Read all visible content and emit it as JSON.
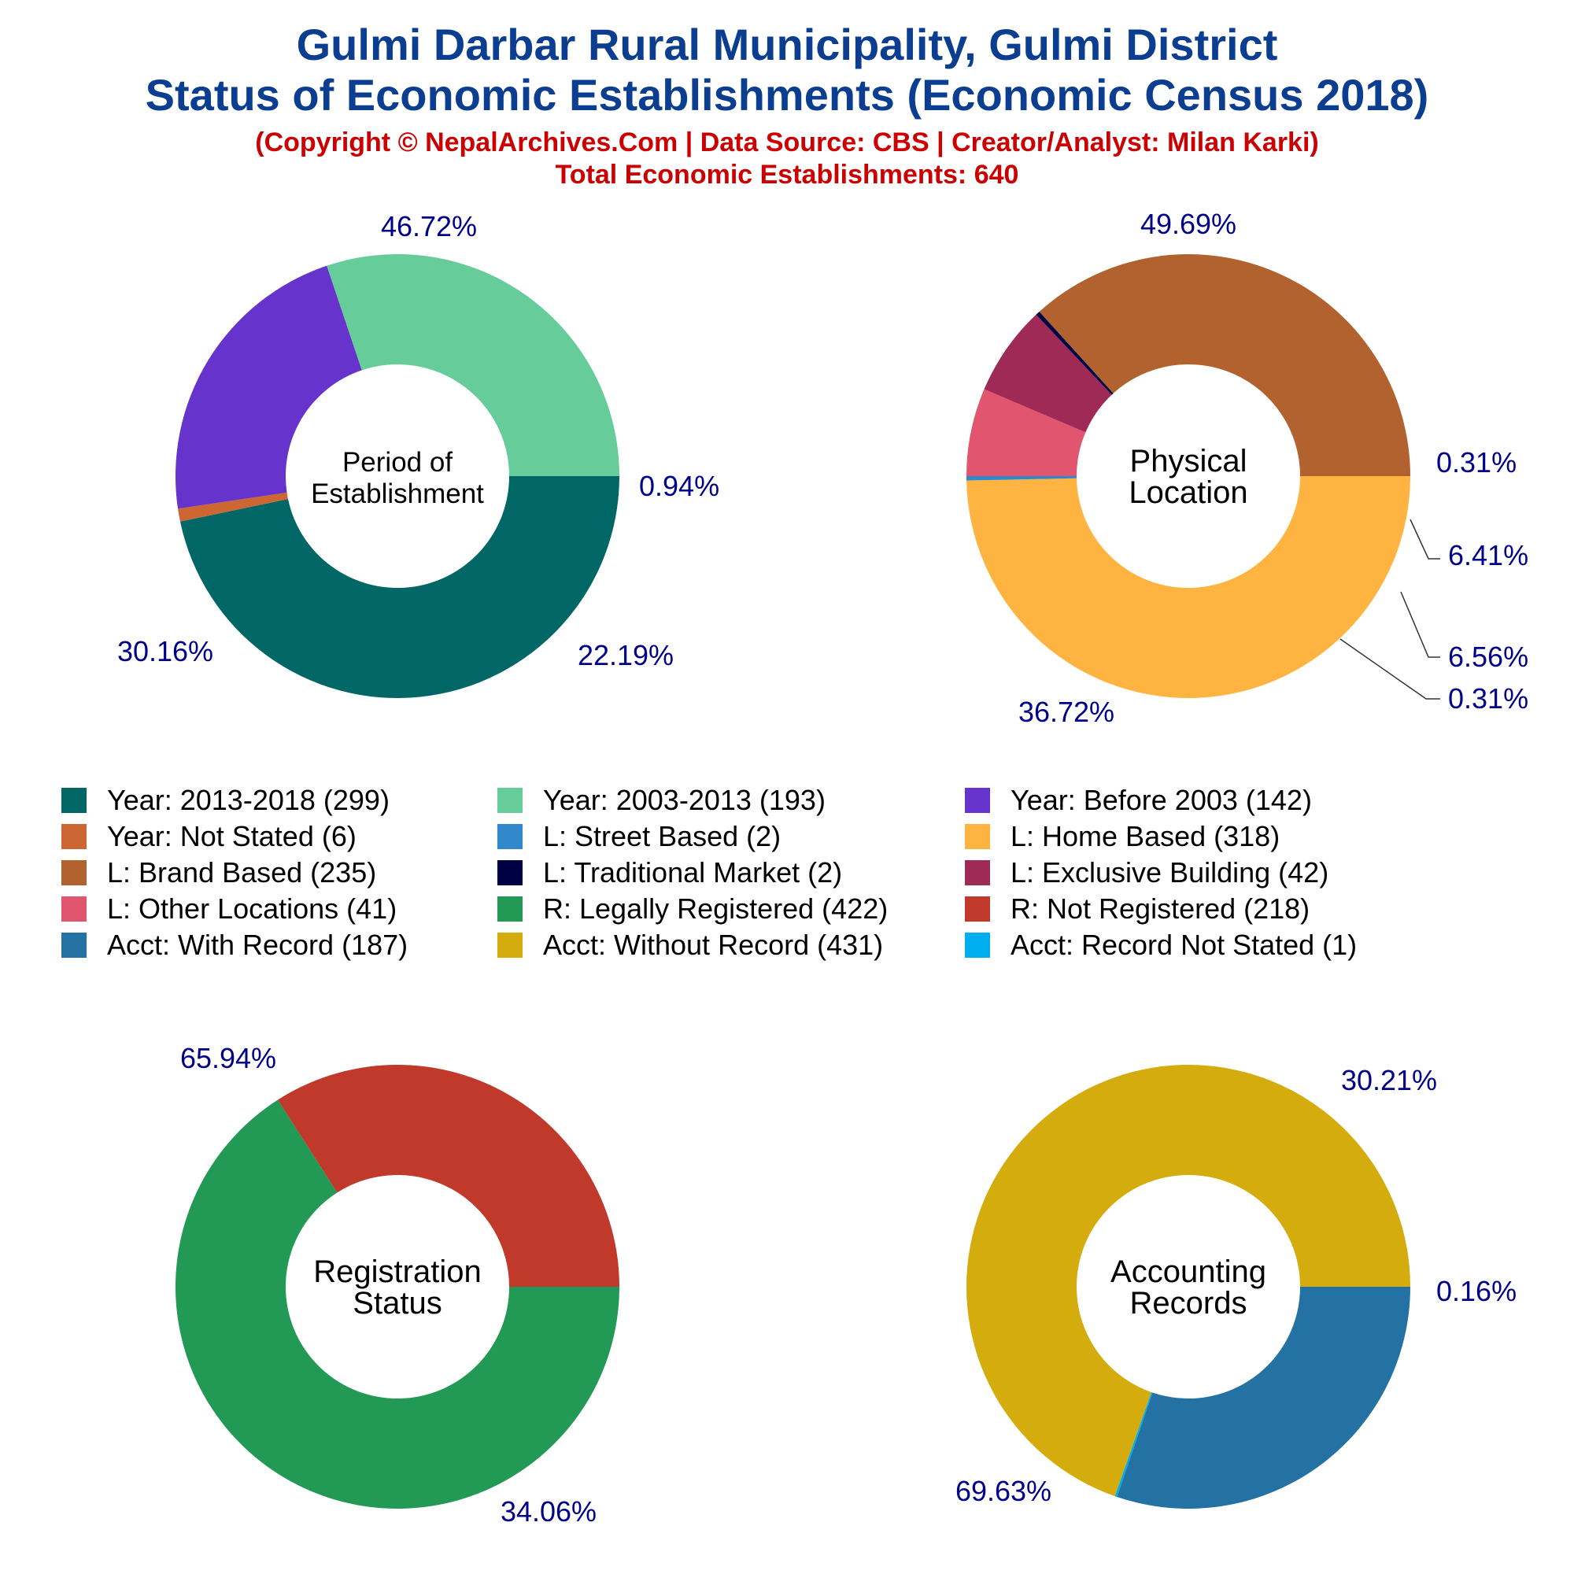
{
  "header": {
    "title_line1": "Gulmi Darbar Rural Municipality, Gulmi District",
    "title_line2": "Status of Economic Establishments (Economic Census 2018)",
    "copyright": "(Copyright © NepalArchives.Com | Data Source: CBS | Creator/Analyst: Milan Karki)",
    "total": "Total Economic Establishments: 640"
  },
  "colors": {
    "title": "#0b3d91",
    "subtitle": "#cc0000",
    "pct_label": "#00008b"
  },
  "legend": [
    {
      "label": "Year: 2013-2018 (299)",
      "color": "#006666"
    },
    {
      "label": "Year: 2003-2013 (193)",
      "color": "#66cc99"
    },
    {
      "label": "Year: Before 2003 (142)",
      "color": "#6633cc"
    },
    {
      "label": "Year: Not Stated (6)",
      "color": "#cc6633"
    },
    {
      "label": "L: Street Based (2)",
      "color": "#3388cc"
    },
    {
      "label": "L: Home Based (318)",
      "color": "#ffb340"
    },
    {
      "label": "L: Brand Based (235)",
      "color": "#b2622f"
    },
    {
      "label": "L: Traditional Market (2)",
      "color": "#000044"
    },
    {
      "label": "L: Exclusive Building (42)",
      "color": "#9e2a55"
    },
    {
      "label": "L: Other Locations (41)",
      "color": "#e2556f"
    },
    {
      "label": "R: Legally Registered (422)",
      "color": "#229955"
    },
    {
      "label": "R: Not Registered (218)",
      "color": "#c0392b"
    },
    {
      "label": "Acct: With Record (187)",
      "color": "#2471a3"
    },
    {
      "label": "Acct: Without Record (431)",
      "color": "#d4ac0d"
    },
    {
      "label": "Acct: Record Not Stated (1)",
      "color": "#00aeef"
    }
  ],
  "chart_data": [
    {
      "type": "pie",
      "donut": true,
      "center_label": [
        "Period of",
        "Establishment"
      ],
      "slices": [
        {
          "name": "Year: 2013-2018",
          "value": 299,
          "label": "46.72%",
          "color": "#006666"
        },
        {
          "name": "Year: Not Stated",
          "value": 6,
          "label": "0.94%",
          "color": "#cc6633"
        },
        {
          "name": "Year: Before 2003",
          "value": 142,
          "label": "22.19%",
          "color": "#6633cc"
        },
        {
          "name": "Year: 2003-2013",
          "value": 193,
          "label": "30.16%",
          "color": "#66cc99"
        }
      ]
    },
    {
      "type": "pie",
      "donut": true,
      "center_label": [
        "Physical",
        "Location"
      ],
      "slices": [
        {
          "name": "L: Home Based",
          "value": 318,
          "label": "49.69%",
          "color": "#ffb340"
        },
        {
          "name": "L: Street Based",
          "value": 2,
          "label": "0.31%",
          "color": "#3388cc"
        },
        {
          "name": "L: Other Locations",
          "value": 41,
          "label": "6.41%",
          "color": "#e2556f"
        },
        {
          "name": "L: Exclusive Building",
          "value": 42,
          "label": "6.56%",
          "color": "#9e2a55"
        },
        {
          "name": "L: Traditional Market",
          "value": 2,
          "label": "0.31%",
          "color": "#000044"
        },
        {
          "name": "L: Brand Based",
          "value": 235,
          "label": "36.72%",
          "color": "#b2622f"
        }
      ]
    },
    {
      "type": "pie",
      "donut": true,
      "center_label": [
        "Registration",
        "Status"
      ],
      "slices": [
        {
          "name": "R: Legally Registered",
          "value": 422,
          "label": "65.94%",
          "color": "#229955"
        },
        {
          "name": "R: Not Registered",
          "value": 218,
          "label": "34.06%",
          "color": "#c0392b"
        }
      ]
    },
    {
      "type": "pie",
      "donut": true,
      "center_label": [
        "Accounting",
        "Records"
      ],
      "slices": [
        {
          "name": "Acct: With Record",
          "value": 187,
          "label": "30.21%",
          "color": "#2471a3"
        },
        {
          "name": "Acct: Record Not Stated",
          "value": 1,
          "label": "0.16%",
          "color": "#00aeef"
        },
        {
          "name": "Acct: Without Record",
          "value": 431,
          "label": "69.63%",
          "color": "#d4ac0d"
        }
      ]
    }
  ]
}
